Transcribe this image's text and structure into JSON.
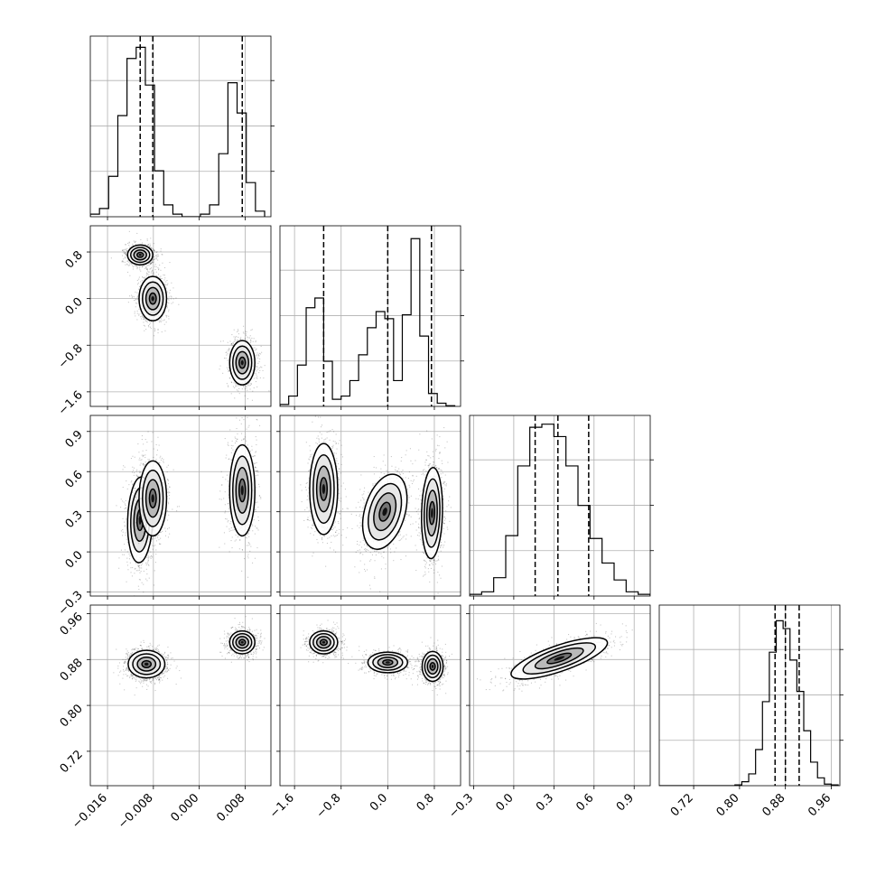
{
  "chart_data": {
    "type": "corner",
    "title": "",
    "n_parameters": 4,
    "parameter_labels": [
      "",
      "",
      "",
      ""
    ],
    "grid": true,
    "axes": [
      {
        "range": [
          -0.019,
          0.0125
        ],
        "ticks": [
          -0.016,
          -0.008,
          0.0,
          0.008
        ],
        "tick_labels": [
          "−0.016",
          "−0.008",
          "0.000",
          "0.008"
        ]
      },
      {
        "range": [
          -1.85,
          1.25
        ],
        "ticks": [
          -1.6,
          -0.8,
          0.0,
          0.8
        ],
        "tick_labels": [
          "−1.6",
          "−0.8",
          "0.0",
          "0.8"
        ]
      },
      {
        "range": [
          -0.33,
          1.02
        ],
        "ticks": [
          -0.3,
          0.0,
          0.3,
          0.6,
          0.9
        ],
        "tick_labels": [
          "−0.3",
          "0.0",
          "0.3",
          "0.6",
          "0.9"
        ]
      },
      {
        "range": [
          0.66,
          0.975
        ],
        "ticks": [
          0.72,
          0.8,
          0.88,
          0.96
        ],
        "tick_labels": [
          "0.72",
          "0.80",
          "0.88",
          "0.96"
        ]
      }
    ],
    "histograms": [
      {
        "parameter": 0,
        "bin_edges": [
          -0.019,
          -0.0174,
          -0.0158,
          -0.0142,
          -0.0126,
          -0.011,
          -0.0094,
          -0.0078,
          -0.0062,
          -0.0046,
          -0.003,
          -0.0014,
          0.0002,
          0.0018,
          0.0034,
          0.005,
          0.0066,
          0.0082,
          0.0098,
          0.0114
        ],
        "counts": [
          0.8,
          2.5,
          12.3,
          30.8,
          48.2,
          51.6,
          40.1,
          14.0,
          3.6,
          0.8,
          0,
          0,
          0.8,
          3.6,
          19.2,
          40.8,
          31.6,
          10.4,
          1.7
        ],
        "ylim": [
          0,
          55
        ],
        "quantiles": [
          -0.0103,
          -0.0081,
          0.0075
        ]
      },
      {
        "parameter": 1,
        "bin_edges": [
          -1.85,
          -1.7,
          -1.55,
          -1.4,
          -1.25,
          -1.1,
          -0.95,
          -0.8,
          -0.65,
          -0.5,
          -0.35,
          -0.2,
          -0.05,
          0.1,
          0.25,
          0.4,
          0.55,
          0.7,
          0.85,
          1.0,
          1.15
        ],
        "counts": [
          0.6,
          3.2,
          12.8,
          30.6,
          33.6,
          14.0,
          2.2,
          3.2,
          8.0,
          16.0,
          24.4,
          29.4,
          27.2,
          8.0,
          28.4,
          52.0,
          21.8,
          4.0,
          1.0,
          0.2
        ],
        "ylim": [
          0,
          56
        ],
        "quantiles": [
          -1.1,
          0.0,
          0.75
        ]
      },
      {
        "parameter": 2,
        "bin_edges": [
          -0.33,
          -0.24,
          -0.15,
          -0.06,
          0.03,
          0.12,
          0.21,
          0.3,
          0.39,
          0.48,
          0.57,
          0.66,
          0.75,
          0.84,
          0.93,
          1.02
        ],
        "counts": [
          0.6,
          1.5,
          6.5,
          21.4,
          46.1,
          59.8,
          60.9,
          56.5,
          46.1,
          32.1,
          20.4,
          11.7,
          5.7,
          1.5,
          0.6
        ],
        "ylim": [
          0,
          64
        ],
        "quantiles": [
          0.16,
          0.33,
          0.56
        ]
      },
      {
        "parameter": 3,
        "bin_edges": [
          0.66,
          0.672,
          0.684,
          0.696,
          0.708,
          0.72,
          0.732,
          0.744,
          0.756,
          0.768,
          0.78,
          0.792,
          0.804,
          0.816,
          0.828,
          0.84,
          0.852,
          0.864,
          0.876,
          0.888,
          0.9,
          0.912,
          0.924,
          0.936,
          0.948,
          0.96,
          0.972
        ],
        "counts": [
          0,
          0,
          0,
          0,
          0,
          0,
          0,
          0,
          0,
          0,
          0,
          0.1,
          0.5,
          1.5,
          4.6,
          10.7,
          17.0,
          21.0,
          20.0,
          16.0,
          12.0,
          7.0,
          3.0,
          1.0,
          0.2,
          0.1
        ],
        "ylim": [
          0,
          23
        ],
        "quantiles": [
          0.862,
          0.88,
          0.904
        ]
      }
    ],
    "pair_panels": [
      {
        "x_param": 0,
        "y_param": 1,
        "modes": [
          {
            "cx": -0.0103,
            "cy": 0.75,
            "sx": 0.0011,
            "sy": 0.085,
            "rho": 0,
            "weight": 1.0
          },
          {
            "cx": -0.0081,
            "cy": 0.0,
            "sx": 0.0012,
            "sy": 0.19,
            "rho": 0,
            "weight": 1.0
          },
          {
            "cx": 0.0075,
            "cy": -1.1,
            "sx": 0.0011,
            "sy": 0.19,
            "rho": 0,
            "weight": 1.0
          }
        ]
      },
      {
        "x_param": 0,
        "y_param": 2,
        "modes": [
          {
            "cx": -0.0103,
            "cy": 0.24,
            "sx": 0.0011,
            "sy": 0.16,
            "rho": 0.1,
            "weight": 1.0
          },
          {
            "cx": -0.0081,
            "cy": 0.4,
            "sx": 0.0012,
            "sy": 0.14,
            "rho": 0,
            "weight": 0.7
          },
          {
            "cx": 0.0075,
            "cy": 0.46,
            "sx": 0.0011,
            "sy": 0.17,
            "rho": 0,
            "weight": 1.0
          }
        ]
      },
      {
        "x_param": 1,
        "y_param": 2,
        "modes": [
          {
            "cx": -1.1,
            "cy": 0.47,
            "sx": 0.12,
            "sy": 0.17,
            "rho": 0,
            "weight": 1.0
          },
          {
            "cx": -0.05,
            "cy": 0.3,
            "sx": 0.19,
            "sy": 0.14,
            "rho": 0.35,
            "weight": 1.0
          },
          {
            "cx": 0.76,
            "cy": 0.29,
            "sx": 0.09,
            "sy": 0.17,
            "rho": 0.1,
            "weight": 1.1
          }
        ]
      },
      {
        "x_param": 0,
        "y_param": 3,
        "modes": [
          {
            "cx": -0.0092,
            "cy": 0.872,
            "sx": 0.0016,
            "sy": 0.012,
            "rho": 0,
            "weight": 1.3
          },
          {
            "cx": 0.0075,
            "cy": 0.91,
            "sx": 0.0011,
            "sy": 0.01,
            "rho": 0,
            "weight": 1.0
          }
        ]
      },
      {
        "x_param": 1,
        "y_param": 3,
        "modes": [
          {
            "cx": -1.1,
            "cy": 0.91,
            "sx": 0.12,
            "sy": 0.01,
            "rho": 0,
            "weight": 1.0
          },
          {
            "cx": 0.0,
            "cy": 0.875,
            "sx": 0.17,
            "sy": 0.009,
            "rho": 0,
            "weight": 0.8
          },
          {
            "cx": 0.77,
            "cy": 0.868,
            "sx": 0.09,
            "sy": 0.013,
            "rho": 0,
            "weight": 1.0
          }
        ]
      },
      {
        "x_param": 2,
        "y_param": 3,
        "modes": [
          {
            "cx": 0.34,
            "cy": 0.882,
            "sx": 0.18,
            "sy": 0.018,
            "rho": 0.75,
            "weight": 1.0
          }
        ]
      }
    ],
    "contour_levels_sigma": [
      0.5,
      1.0,
      1.5,
      2.0
    ]
  }
}
